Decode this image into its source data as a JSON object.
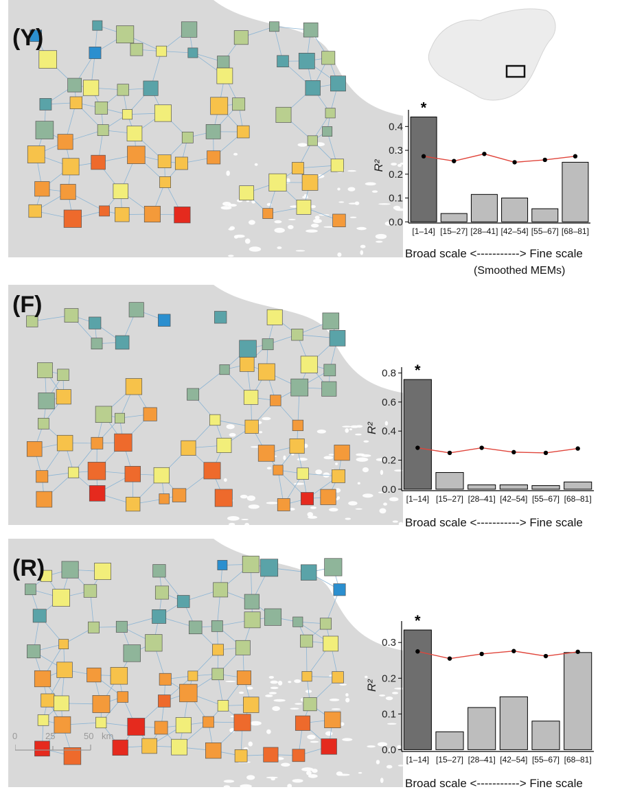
{
  "panels": [
    {
      "label": "(Y)",
      "scale_note": "Broad scale <-----------> Fine scale",
      "sub_note": "(Smoothed MEMs)"
    },
    {
      "label": "(F)",
      "scale_note": "Broad scale <-----------> Fine scale"
    },
    {
      "label": "(R)",
      "scale_note": "Broad scale <-----------> Fine scale"
    }
  ],
  "map_scalebar": {
    "ticks": [
      "0",
      "25",
      "50"
    ],
    "unit": "km"
  },
  "colors": {
    "bar_dark": "#6e6e6e",
    "bar_light": "#bdbdbd",
    "line": "#e0443a",
    "point": "#000000",
    "land": "#d9d9d9",
    "water": "#ffffff",
    "map_palette": [
      "#2b8fcf",
      "#5aa3a8",
      "#8fb59a",
      "#b9cf8f",
      "#f2ee7a",
      "#f7c24a",
      "#f49a3a",
      "#ee6a2c",
      "#e52a1e"
    ]
  },
  "chart_data": [
    {
      "type": "bar",
      "panel": "(Y)",
      "categories": [
        "[1–14]",
        "[15–27]",
        "[28–41]",
        "[42–54]",
        "[55–67]",
        "[68–81]"
      ],
      "values": [
        0.44,
        0.035,
        0.115,
        0.1,
        0.055,
        0.25
      ],
      "line_values": [
        0.275,
        0.255,
        0.285,
        0.25,
        0.26,
        0.275
      ],
      "significant": [
        true,
        false,
        false,
        false,
        false,
        false
      ],
      "significance_marker": "*",
      "ylabel": "R²",
      "yticks": [
        "0.0",
        "0.1",
        "0.2",
        "0.3",
        "0.4"
      ],
      "ytick_values": [
        0,
        0.1,
        0.2,
        0.3,
        0.4
      ],
      "ylim": [
        -0.005,
        0.47
      ]
    },
    {
      "type": "bar",
      "panel": "(F)",
      "categories": [
        "[1–14]",
        "[15–27]",
        "[28–41]",
        "[42–54]",
        "[55–67]",
        "[68–81]"
      ],
      "values": [
        0.755,
        0.115,
        0.03,
        0.03,
        0.025,
        0.05
      ],
      "line_values": [
        0.285,
        0.25,
        0.285,
        0.255,
        0.25,
        0.28
      ],
      "significant": [
        true,
        false,
        false,
        false,
        false,
        false
      ],
      "significance_marker": "*",
      "ylabel": "R²",
      "yticks": [
        "0.0",
        "0.2",
        "0.4",
        "0.6",
        "0.8"
      ],
      "ytick_values": [
        0,
        0.2,
        0.4,
        0.6,
        0.8
      ],
      "ylim": [
        -0.01,
        0.84
      ]
    },
    {
      "type": "bar",
      "panel": "(R)",
      "categories": [
        "[1–14]",
        "[15–27]",
        "[28–41]",
        "[42–54]",
        "[55–67]",
        "[68–81]"
      ],
      "values": [
        0.335,
        0.05,
        0.118,
        0.148,
        0.08,
        0.272
      ],
      "line_values": [
        0.275,
        0.255,
        0.268,
        0.276,
        0.262,
        0.274
      ],
      "significant": [
        true,
        false,
        false,
        false,
        false,
        false
      ],
      "significance_marker": "*",
      "ylabel": "R²",
      "yticks": [
        "0.0",
        "0.1",
        "0.2",
        "0.3"
      ],
      "ytick_values": [
        0,
        0.1,
        0.2,
        0.3
      ],
      "ylim": [
        -0.005,
        0.36
      ]
    }
  ]
}
